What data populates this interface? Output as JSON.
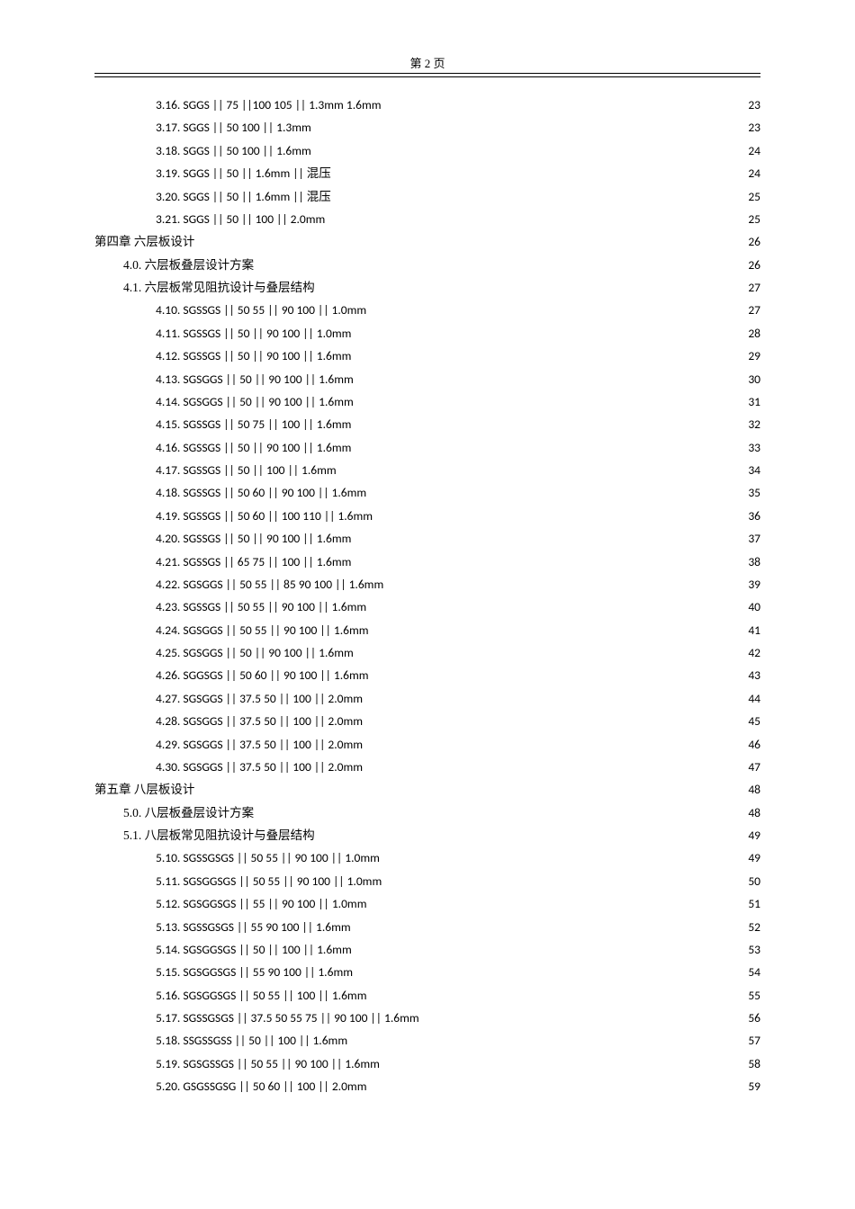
{
  "header": "第 2 页",
  "toc": [
    {
      "indent": 2,
      "label": "3.16. SGGS || 75 ||100 105 || 1.3mm 1.6mm",
      "page": "23"
    },
    {
      "indent": 2,
      "label": "3.17. SGGS || 50 100 || 1.3mm",
      "page": "23"
    },
    {
      "indent": 2,
      "label": "3.18. SGGS || 50 100 || 1.6mm",
      "page": "24"
    },
    {
      "indent": 2,
      "label": "3.19. SGGS || 50   || 1.6mm ||  混压 ",
      "page": "24"
    },
    {
      "indent": 2,
      "label": "3.20. SGGS || 50   || 1.6mm ||  混压 ",
      "page": "25"
    },
    {
      "indent": 2,
      "label": "3.21. SGGS || 50 || 100 || 2.0mm ",
      "page": "25"
    },
    {
      "indent": 0,
      "label": "第四章 六层板设计",
      "page": "26",
      "cn": true
    },
    {
      "indent": 1,
      "label": "4.0. 六层板叠层设计方案",
      "page": "26",
      "cn": true
    },
    {
      "indent": 1,
      "label": "4.1. 六层板常见阻抗设计与叠层结构",
      "page": "27",
      "cn": true
    },
    {
      "indent": 2,
      "label": "4.10. SGSSGS || 50 55 || 90 100 || 1.0mm",
      "page": "27"
    },
    {
      "indent": 2,
      "label": "4.11. SGSSGS || 50 || 90 100 || 1.0mm",
      "page": "28"
    },
    {
      "indent": 2,
      "label": "4.12. SGSSGS || 50 || 90 100 || 1.6mm",
      "page": "29"
    },
    {
      "indent": 2,
      "label": "4.13. SGSGGS || 50 || 90 100 || 1.6mm",
      "page": "30"
    },
    {
      "indent": 2,
      "label": "4.14. SGSGGS || 50 || 90 100 || 1.6mm",
      "page": "31"
    },
    {
      "indent": 2,
      "label": "4.15. SGSSGS || 50 75 || 100 || 1.6mm",
      "page": "32"
    },
    {
      "indent": 2,
      "label": "4.16. SGSSGS || 50 || 90 100 || 1.6mm",
      "page": "33"
    },
    {
      "indent": 2,
      "label": "4.17. SGSSGS || 50 || 100 ||   1.6mm ",
      "page": "34"
    },
    {
      "indent": 2,
      "label": "4.18. SGSSGS || 50 60 || 90 100 || 1.6mm",
      "page": "35"
    },
    {
      "indent": 2,
      "label": "4.19. SGSSGS || 50 60 || 100 110 || 1.6mm",
      "page": "36"
    },
    {
      "indent": 2,
      "label": "4.20. SGSSGS || 50 || 90 100 || 1.6mm",
      "page": "37"
    },
    {
      "indent": 2,
      "label": "4.21. SGSSGS || 65 75 || 100 || 1.6mm",
      "page": "38"
    },
    {
      "indent": 2,
      "label": "4.22. SGSGGS || 50 55 || 85 90 100 || 1.6mm ",
      "page": "39"
    },
    {
      "indent": 2,
      "label": "4.23. SGSSGS || 50 55 || 90 100 || 1.6mm",
      "page": "40"
    },
    {
      "indent": 2,
      "label": "4.24. SGSGGS || 50 55 || 90 100 || 1.6mm",
      "page": "41"
    },
    {
      "indent": 2,
      "label": "4.25. SGSGGS || 50 || 90 100 || 1.6mm",
      "page": "42"
    },
    {
      "indent": 2,
      "label": "4.26. SGGSGS || 50 60 || 90 100 || 1.6mm",
      "page": "43"
    },
    {
      "indent": 2,
      "label": "4.27. SGSGGS || 37.5 50 || 100 || 2.0mm ",
      "page": "44"
    },
    {
      "indent": 2,
      "label": "4.28. SGSGGS || 37.5 50 || 100 || 2.0mm",
      "page": "45"
    },
    {
      "indent": 2,
      "label": "4.29. SGSGGS || 37.5 50 || 100 || 2.0mm",
      "page": "46"
    },
    {
      "indent": 2,
      "label": "4.30. SGSGGS || 37.5 50 || 100 || 2.0mm",
      "page": "47"
    },
    {
      "indent": 0,
      "label": "第五章 八层板设计",
      "page": "48",
      "cn": true
    },
    {
      "indent": 1,
      "label": "5.0. 八层板叠层设计方案",
      "page": "48",
      "cn": true
    },
    {
      "indent": 1,
      "label": "5.1. 八层板常见阻抗设计与叠层结构",
      "page": "49",
      "cn": true
    },
    {
      "indent": 2,
      "label": "5.10. SGSSGSGS || 50 55 || 90 100 || 1.0mm ",
      "page": "49"
    },
    {
      "indent": 2,
      "label": "5.11. SGSGGSGS || 50 55 || 90 100 || 1.0mm",
      "page": "50"
    },
    {
      "indent": 2,
      "label": "5.12. SGSGGSGS || 55 || 90 100 || 1.0mm ",
      "page": "51"
    },
    {
      "indent": 2,
      "label": "5.13. SGSSGSGS || 55 90 100 || 1.6mm",
      "page": "52"
    },
    {
      "indent": 2,
      "label": "5.14. SGSGGSGS || 50 || 100 || 1.6mm ",
      "page": "53"
    },
    {
      "indent": 2,
      "label": "5.15. SGSGGSGS || 55 90 100 || 1.6mm ",
      "page": "54"
    },
    {
      "indent": 2,
      "label": "5.16. SGSGGSGS || 50 55 || 100 || 1.6mm ",
      "page": "55"
    },
    {
      "indent": 2,
      "label": "5.17. SGSSGSGS || 37.5 50 55 75 || 90 100 || 1.6mm",
      "page": "56"
    },
    {
      "indent": 2,
      "label": "5.18. SSGSSGSS || 50 || 100 || 1.6mm",
      "page": "57"
    },
    {
      "indent": 2,
      "label": "5.19. SGSGSSGS || 50 55 || 90 100 || 1.6mm ",
      "page": "58"
    },
    {
      "indent": 2,
      "label": "5.20. GSGSSGSG || 50 60 || 100 || 2.0mm ",
      "page": "59"
    }
  ]
}
